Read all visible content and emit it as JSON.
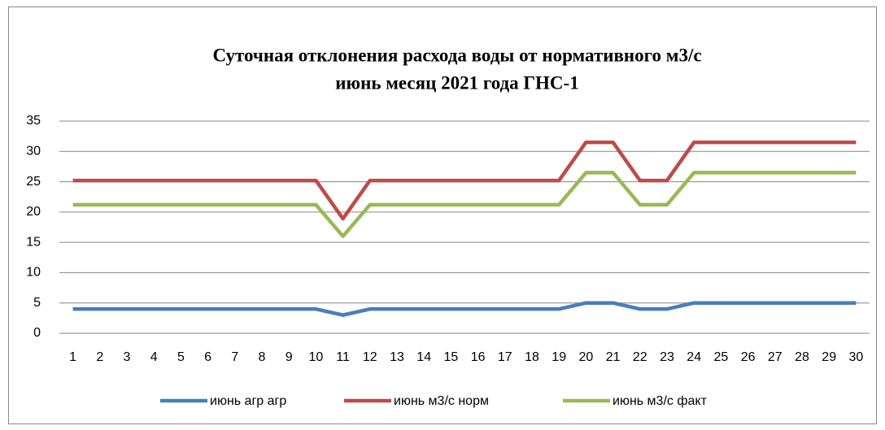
{
  "chart_data": {
    "type": "line",
    "title": [
      "Суточная отклонения расхода воды от нормативного м3/с",
      "июнь месяц 2021 года  ГНС-1"
    ],
    "categories": [
      "1",
      "2",
      "3",
      "4",
      "5",
      "6",
      "7",
      "8",
      "9",
      "10",
      "11",
      "12",
      "13",
      "14",
      "15",
      "16",
      "17",
      "18",
      "19",
      "20",
      "21",
      "22",
      "23",
      "24",
      "25",
      "26",
      "27",
      "28",
      "29",
      "30"
    ],
    "series": [
      {
        "name": "июнь агр агр",
        "color": "#4a7ebb",
        "values": [
          4,
          4,
          4,
          4,
          4,
          4,
          4,
          4,
          4,
          4,
          3,
          4,
          4,
          4,
          4,
          4,
          4,
          4,
          4,
          5,
          5,
          4,
          4,
          5,
          5,
          5,
          5,
          5,
          5,
          5
        ]
      },
      {
        "name": "июнь м3/с норм",
        "color": "#be4b48",
        "values": [
          25.2,
          25.2,
          25.2,
          25.2,
          25.2,
          25.2,
          25.2,
          25.2,
          25.2,
          25.2,
          18.9,
          25.2,
          25.2,
          25.2,
          25.2,
          25.2,
          25.2,
          25.2,
          25.2,
          31.5,
          31.5,
          25.2,
          25.2,
          31.5,
          31.5,
          31.5,
          31.5,
          31.5,
          31.5,
          31.5
        ]
      },
      {
        "name": "июнь м3/с факт",
        "color": "#98b954",
        "values": [
          21.2,
          21.2,
          21.2,
          21.2,
          21.2,
          21.2,
          21.2,
          21.2,
          21.2,
          21.2,
          16,
          21.2,
          21.2,
          21.2,
          21.2,
          21.2,
          21.2,
          21.2,
          21.2,
          26.5,
          26.5,
          21.2,
          21.2,
          26.5,
          26.5,
          26.5,
          26.5,
          26.5,
          26.5,
          26.5
        ]
      }
    ],
    "ylim": [
      0,
      35
    ],
    "yticks": [
      0,
      5,
      10,
      15,
      20,
      25,
      30,
      35
    ],
    "grid": true,
    "legend": "bottom"
  }
}
